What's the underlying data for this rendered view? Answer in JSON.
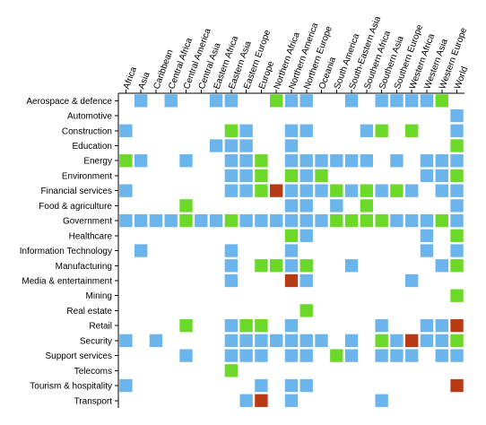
{
  "colors": {
    "blue": "#6bb5ec",
    "green": "#6cd829",
    "red": "#b83a14"
  },
  "chart_data": {
    "type": "heatmap",
    "columns": [
      "Africa",
      "Asia",
      "Caribbean",
      "Central Africa",
      "Central America",
      "Central Asia",
      "Eastern Africa",
      "Eastern Asia",
      "Eastern Europe",
      "Europe",
      "Northern Africa",
      "Northern America",
      "Northern Europe",
      "Oceania",
      "South America",
      "South-Eastern Asia",
      "Southern Africa",
      "Southern Asia",
      "Southern Europe",
      "Western Africa",
      "Western Asia",
      "Western Europe",
      "World"
    ],
    "rows": [
      "Aerospace & defence",
      "Automotive",
      "Construction",
      "Education",
      "Energy",
      "Environment",
      "Financial services",
      "Food & agriculture",
      "Government",
      "Healthcare",
      "Information Technology",
      "Manufacturing",
      "Media & entertainment",
      "Mining",
      "Real estate",
      "Retail",
      "Security",
      "Support services",
      "Telecoms",
      "Tourism & hospitality",
      "Transport"
    ],
    "legend_values": {
      "b": "blue",
      "g": "green",
      "r": "red",
      ".": "empty"
    },
    "cells": [
      ".b.b..bb..gbb..b.bbbbg.",
      "......................b",
      "b......gb..bb...bg.g..b",
      "......bbb..b..........g",
      "gb..b..bbg.bbbbbb.b.bbb",
      ".......bbg.gbg......bbg",
      "b......bbgrbbbgbgbgb.bb",
      "....g......bb.b.g.....b",
      "bbbbgbbgbbbbbbggggbbbgb",
      "...........gb.......b.g",
      ".b.....b...b........b.b",
      ".......b.ggbg..b.....bg",
      ".......b...rb......b...",
      "......................g",
      "............g.........."
    ],
    "cells_more": [
      "....g..bgg.b.....b..bbr",
      "b.b....bbbbbbb.b.gbrbbg",
      "....b..bbb.bb.gb.bbb.bb",
      ".......g...............",
      "b........b.bb.........r",
      "........br.b.....b....."
    ]
  }
}
